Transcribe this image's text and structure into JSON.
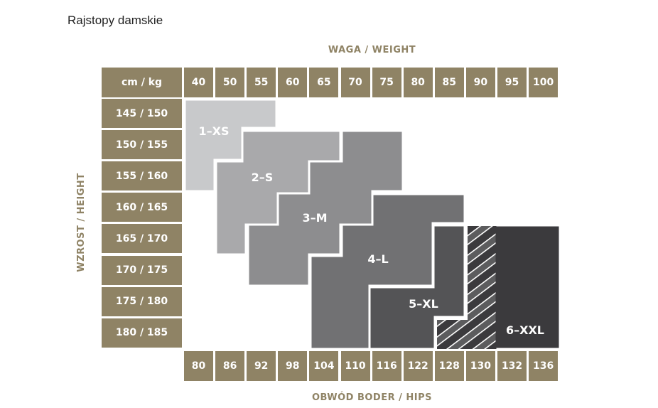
{
  "title": "Rajstopy damskie",
  "chart_data": {
    "type": "table",
    "title": "",
    "x_axis_label": "WAGA / WEIGHT",
    "y_axis_label": "WZROST / HEIGHT",
    "bottom_axis_label": "OBWÓD BODER / HIPS",
    "corner_label": "cm / kg",
    "weights": [
      "40",
      "50",
      "55",
      "60",
      "65",
      "70",
      "75",
      "80",
      "85",
      "90",
      "95",
      "100"
    ],
    "heights": [
      "145 / 150",
      "150 / 155",
      "155 / 160",
      "160 / 165",
      "165 / 170",
      "170 / 175",
      "175 / 180",
      "180 / 185"
    ],
    "hips": [
      "80",
      "86",
      "92",
      "98",
      "104",
      "110",
      "116",
      "122",
      "128",
      "130",
      "132",
      "136"
    ],
    "sizes": [
      {
        "label": "1–XS",
        "color": "#c8c9cb"
      },
      {
        "label": "2–S",
        "color": "#a9a9ab"
      },
      {
        "label": "3–M",
        "color": "#8d8d8f"
      },
      {
        "label": "4–L",
        "color": "#717173"
      },
      {
        "label": "5–XL",
        "color": "#545456"
      },
      {
        "label": "6–XXL",
        "color": "#3b3a3d"
      }
    ],
    "header_color": "#8f8365"
  }
}
